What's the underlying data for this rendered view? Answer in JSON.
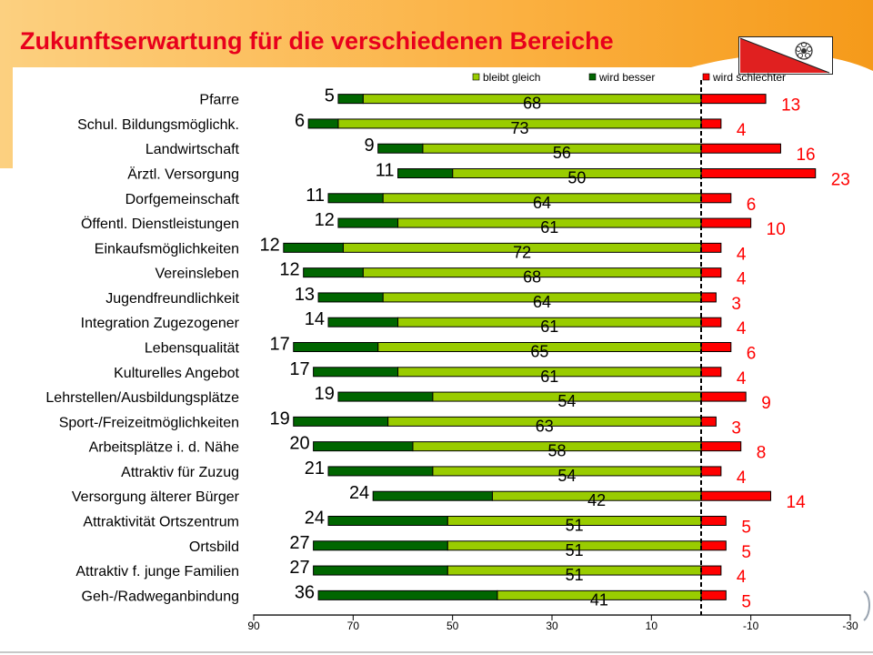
{
  "title": "Zukunftserwartung für die verschiedenen Bereiche",
  "colors": {
    "title": "#e8001c",
    "bleibt_gleich": "#99cc00",
    "wird_besser": "#006600",
    "wird_schlechter": "#ff0000",
    "background_swoosh": "#fbb040"
  },
  "chart_data": {
    "type": "bar",
    "orientation": "horizontal",
    "stacked": true,
    "categories": [
      "Pfarre",
      "Schul. Bildungsmöglichk.",
      "Landwirtschaft",
      "Ärztl. Versorgung",
      "Dorfgemeinschaft",
      "Öffentl. Dienstleistungen",
      "Einkaufsmöglichkeiten",
      "Vereinsleben",
      "Jugendfreundlichkeit",
      "Integration Zugezogener",
      "Lebensqualität",
      "Kulturelles Angebot",
      "Lehrstellen/Ausbildungsplätze",
      "Sport-/Freizeitmöglichkeiten",
      "Arbeitsplätze i. d. Nähe",
      "Attraktiv für Zuzug",
      "Versorgung älterer Bürger",
      "Attraktivität Ortszentrum",
      "Ortsbild",
      "Attraktiv f. junge Familien",
      "Geh-/Radweganbindung"
    ],
    "series": [
      {
        "name": "bleibt gleich",
        "values": [
          68,
          73,
          56,
          50,
          64,
          61,
          72,
          68,
          64,
          61,
          65,
          61,
          54,
          63,
          58,
          54,
          42,
          51,
          51,
          51,
          41
        ]
      },
      {
        "name": "wird besser",
        "values": [
          5,
          6,
          9,
          11,
          11,
          12,
          12,
          12,
          13,
          14,
          17,
          17,
          19,
          19,
          20,
          21,
          24,
          24,
          27,
          27,
          36
        ]
      },
      {
        "name": "wird schlechter",
        "values": [
          13,
          4,
          16,
          23,
          6,
          10,
          4,
          4,
          3,
          4,
          6,
          4,
          9,
          3,
          8,
          4,
          14,
          5,
          5,
          4,
          5
        ]
      }
    ],
    "xticks": [
      "90",
      "70",
      "50",
      "30",
      "10",
      "-10",
      "-30"
    ],
    "xlim": [
      90,
      -30
    ],
    "legend_position": "top-right"
  }
}
